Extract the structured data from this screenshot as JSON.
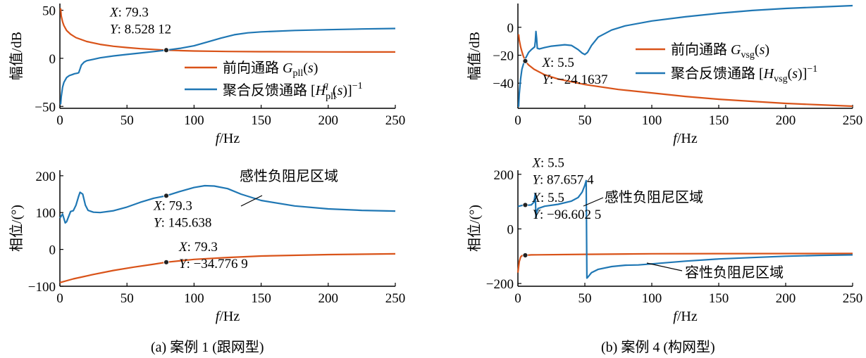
{
  "captions": {
    "a": "(a)  案例 1 (跟网型)",
    "b": "(b)  案例 4 (构网型)"
  },
  "colors": {
    "forward": "#d95319",
    "feedback": "#1f77b4",
    "axis": "#000000"
  },
  "chart_data": [
    {
      "id": "a_mag",
      "type": "line",
      "xlabel": "f/Hz",
      "ylabel": "幅值/dB",
      "xlim": [
        0,
        250
      ],
      "ylim": [
        -52,
        57
      ],
      "xticks": [
        0,
        50,
        100,
        150,
        200,
        250
      ],
      "yticks": [
        -50,
        0,
        50
      ],
      "ytick_labels": [
        "−50",
        "0",
        "50"
      ],
      "series": [
        {
          "name": "前向通路 Gpll(s)",
          "points": [
            [
              0.5,
              52
            ],
            [
              1,
              44
            ],
            [
              2,
              38
            ],
            [
              3,
              34
            ],
            [
              5,
              29
            ],
            [
              8,
              25
            ],
            [
              12,
              21.5
            ],
            [
              20,
              17.5
            ],
            [
              30,
              14.5
            ],
            [
              40,
              12.5
            ],
            [
              50,
              11.2
            ],
            [
              60,
              10
            ],
            [
              70,
              9.2
            ],
            [
              79.3,
              8.53
            ],
            [
              90,
              8
            ],
            [
              100,
              7.6
            ],
            [
              125,
              7.1
            ],
            [
              150,
              6.9
            ],
            [
              200,
              6.7
            ],
            [
              250,
              6.6
            ]
          ]
        },
        {
          "name": "聚合反馈通路 [Hqpll(s)]−1",
          "points": [
            [
              0.5,
              -48
            ],
            [
              1,
              -40
            ],
            [
              2,
              -30
            ],
            [
              3,
              -25
            ],
            [
              5,
              -20
            ],
            [
              7,
              -18
            ],
            [
              9,
              -17
            ],
            [
              11,
              -16
            ],
            [
              13,
              -15.5
            ],
            [
              14,
              -15
            ],
            [
              15,
              -11
            ],
            [
              16,
              -7
            ],
            [
              18,
              -4
            ],
            [
              20,
              -2.5
            ],
            [
              25,
              -1
            ],
            [
              30,
              0.5
            ],
            [
              40,
              2.5
            ],
            [
              50,
              4
            ],
            [
              60,
              5.5
            ],
            [
              70,
              7
            ],
            [
              79.3,
              8.53
            ],
            [
              90,
              10.5
            ],
            [
              100,
              13
            ],
            [
              110,
              17
            ],
            [
              120,
              21
            ],
            [
              130,
              24.5
            ],
            [
              140,
              26.5
            ],
            [
              150,
              27.5
            ],
            [
              175,
              29
            ],
            [
              200,
              29.8
            ],
            [
              225,
              30.5
            ],
            [
              250,
              31
            ]
          ]
        }
      ],
      "annotations": [
        {
          "x": 79.3,
          "y": 8.528,
          "lines": [
            "X: 79.3",
            "Y: 8.528 12"
          ]
        }
      ]
    },
    {
      "id": "a_phase",
      "type": "line",
      "xlabel": "f/Hz",
      "ylabel": "相位/(°)",
      "xlim": [
        0,
        250
      ],
      "ylim": [
        -100,
        215
      ],
      "xticks": [
        0,
        50,
        100,
        150,
        200,
        250
      ],
      "yticks": [
        -100,
        0,
        100,
        200
      ],
      "ytick_labels": [
        "−100",
        "0",
        "100",
        "200"
      ],
      "series": [
        {
          "name": "前向通路",
          "points": [
            [
              0,
              -90
            ],
            [
              10,
              -80
            ],
            [
              25,
              -68
            ],
            [
              40,
              -57
            ],
            [
              55,
              -48
            ],
            [
              70,
              -40
            ],
            [
              79.3,
              -34.78
            ],
            [
              100,
              -27
            ],
            [
              125,
              -22
            ],
            [
              150,
              -18
            ],
            [
              200,
              -14
            ],
            [
              250,
              -12
            ]
          ]
        },
        {
          "name": "聚合反馈通路",
          "points": [
            [
              0,
              85
            ],
            [
              2,
              96
            ],
            [
              4,
              72
            ],
            [
              5,
              75
            ],
            [
              8,
              103
            ],
            [
              10,
              105
            ],
            [
              12,
              120
            ],
            [
              14,
              145
            ],
            [
              15,
              155
            ],
            [
              17,
              150
            ],
            [
              19,
              120
            ],
            [
              21,
              106
            ],
            [
              25,
              101
            ],
            [
              30,
              100
            ],
            [
              40,
              105
            ],
            [
              50,
              115
            ],
            [
              60,
              128
            ],
            [
              70,
              139
            ],
            [
              79.3,
              145.64
            ],
            [
              90,
              158
            ],
            [
              100,
              168
            ],
            [
              108,
              173
            ],
            [
              115,
              172
            ],
            [
              125,
              165
            ],
            [
              135,
              150
            ],
            [
              150,
              133
            ],
            [
              175,
              118
            ],
            [
              200,
              110
            ],
            [
              225,
              106
            ],
            [
              250,
              104
            ]
          ]
        }
      ],
      "annotations": [
        {
          "x": 79.3,
          "y": 145.638,
          "lines": [
            "X: 79.3",
            "Y: 145.638"
          ]
        },
        {
          "x": 79.3,
          "y": -34.7769,
          "lines": [
            "X: 79.3",
            "Y: −34.776 9"
          ]
        }
      ],
      "region_label": "感性负阻尼区域"
    },
    {
      "id": "b_mag",
      "type": "line",
      "xlabel": "f/Hz",
      "ylabel": "幅值/dB",
      "xlim": [
        0,
        250
      ],
      "ylim": [
        -58,
        17
      ],
      "xticks": [
        0,
        50,
        100,
        150,
        200,
        250
      ],
      "yticks": [
        -40,
        -20,
        0
      ],
      "ytick_labels": [
        "−40",
        "−20",
        "0"
      ],
      "series": [
        {
          "name": "前向通路 Gvsg(s)",
          "points": [
            [
              0.5,
              -5
            ],
            [
              1,
              -9
            ],
            [
              2,
              -14
            ],
            [
              3,
              -17.5
            ],
            [
              4,
              -20.5
            ],
            [
              5.5,
              -24.16
            ],
            [
              8,
              -27
            ],
            [
              12,
              -30
            ],
            [
              20,
              -34
            ],
            [
              30,
              -37
            ],
            [
              50,
              -41
            ],
            [
              75,
              -44.5
            ],
            [
              100,
              -47
            ],
            [
              125,
              -49.5
            ],
            [
              150,
              -51.5
            ],
            [
              175,
              -53
            ],
            [
              200,
              -54.5
            ],
            [
              225,
              -55.5
            ],
            [
              250,
              -56.5
            ]
          ]
        },
        {
          "name": "聚合反馈通路 [Hvsg(s)]−1",
          "points": [
            [
              0.5,
              -57
            ],
            [
              1,
              -48
            ],
            [
              2,
              -37
            ],
            [
              3,
              -30
            ],
            [
              5,
              -23.5
            ],
            [
              8,
              -18
            ],
            [
              10,
              -16
            ],
            [
              12.5,
              -14
            ],
            [
              13,
              -10
            ],
            [
              13.5,
              -3
            ],
            [
              14,
              -8
            ],
            [
              14.5,
              -15
            ],
            [
              16,
              -15.5
            ],
            [
              20,
              -14.5
            ],
            [
              25,
              -13.5
            ],
            [
              30,
              -13
            ],
            [
              35,
              -12.5
            ],
            [
              40,
              -13
            ],
            [
              45,
              -16
            ],
            [
              48,
              -18.5
            ],
            [
              50,
              -19.5
            ],
            [
              52,
              -18
            ],
            [
              55,
              -13
            ],
            [
              60,
              -7
            ],
            [
              70,
              -2
            ],
            [
              80,
              1
            ],
            [
              100,
              4.5
            ],
            [
              125,
              7.5
            ],
            [
              150,
              10
            ],
            [
              175,
              12
            ],
            [
              200,
              13.5
            ],
            [
              225,
              14.5
            ],
            [
              250,
              15.5
            ]
          ]
        }
      ],
      "annotations": [
        {
          "x": 5.5,
          "y": -24.1637,
          "lines": [
            "X: 5.5",
            "Y: −24.1637"
          ]
        }
      ]
    },
    {
      "id": "b_phase",
      "type": "line",
      "xlabel": "f/Hz",
      "ylabel": "相位/(°)",
      "xlim": [
        0,
        250
      ],
      "ylim": [
        -210,
        215
      ],
      "xticks": [
        0,
        50,
        100,
        150,
        200,
        250
      ],
      "yticks": [
        -200,
        0,
        200
      ],
      "ytick_labels": [
        "−200",
        "0",
        "200"
      ],
      "series": [
        {
          "name": "前向通路",
          "points": [
            [
              0,
              -160
            ],
            [
              1,
              -120
            ],
            [
              2,
              -103
            ],
            [
              3,
              -98
            ],
            [
              5.5,
              -96.6
            ],
            [
              10,
              -95
            ],
            [
              50,
              -93
            ],
            [
              100,
              -91
            ],
            [
              150,
              -90.5
            ],
            [
              250,
              -90
            ]
          ]
        },
        {
          "name": "聚合反馈通路",
          "points": [
            [
              0,
              82
            ],
            [
              3,
              86
            ],
            [
              5.5,
              87.66
            ],
            [
              8,
              87
            ],
            [
              10,
              88
            ],
            [
              12,
              98
            ],
            [
              13,
              130
            ],
            [
              13.5,
              40
            ],
            [
              14,
              60
            ],
            [
              15,
              75
            ],
            [
              20,
              83
            ],
            [
              30,
              90
            ],
            [
              40,
              102
            ],
            [
              45,
              115
            ],
            [
              48,
              135
            ],
            [
              50,
              160
            ],
            [
              51,
              177
            ],
            [
              51.5,
              -180
            ],
            [
              52,
              -178
            ],
            [
              55,
              -160
            ],
            [
              60,
              -148
            ],
            [
              70,
              -138
            ],
            [
              80,
              -133
            ],
            [
              90,
              -132
            ],
            [
              100,
              -128
            ],
            [
              125,
              -118
            ],
            [
              150,
              -110
            ],
            [
              175,
              -105
            ],
            [
              200,
              -100
            ],
            [
              225,
              -97
            ],
            [
              250,
              -95
            ]
          ]
        }
      ],
      "annotations": [
        {
          "x": 5.5,
          "y": 87.6574,
          "lines": [
            "X: 5.5",
            "Y: 87.657 4"
          ]
        },
        {
          "x": 5.5,
          "y": -96.6025,
          "lines": [
            "X: 5.5",
            "Y: −96.602 5"
          ]
        }
      ],
      "region_labels": [
        "感性负阻尼区域",
        "容性负阻尼区域"
      ]
    }
  ]
}
